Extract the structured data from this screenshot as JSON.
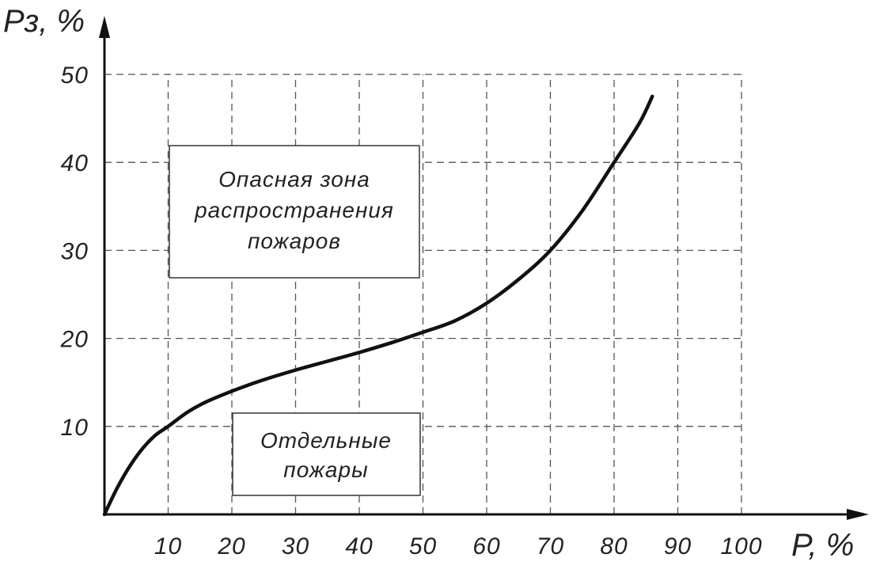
{
  "chart_data": {
    "type": "line",
    "title": "",
    "xlabel": "P, %",
    "ylabel": "Pз, %",
    "xlim": [
      0,
      100
    ],
    "ylim": [
      0,
      50
    ],
    "grid": true,
    "x_ticks": [
      "10",
      "20",
      "30",
      "40",
      "50",
      "60",
      "70",
      "80",
      "90",
      "100"
    ],
    "y_ticks": [
      "10",
      "20",
      "30",
      "40",
      "50"
    ],
    "series": [
      {
        "x": [
          0,
          2,
          4,
          6,
          8,
          10,
          13,
          16,
          20,
          25,
          30,
          35,
          40,
          45,
          50,
          55,
          60,
          65,
          70,
          75,
          80,
          84,
          86
        ],
        "y": [
          0,
          3,
          5.5,
          7.5,
          9,
          10,
          11.6,
          12.8,
          14,
          15.3,
          16.4,
          17.4,
          18.4,
          19.5,
          20.7,
          22,
          24,
          26.7,
          30,
          34.5,
          40,
          44.5,
          47.5
        ]
      }
    ],
    "annotations": [
      {
        "lines": [
          "Опасная зона",
          "распространения",
          "пожаров"
        ]
      },
      {
        "lines": [
          "Отдельные",
          "пожары"
        ]
      }
    ],
    "colors": {
      "grid": "#555555",
      "curve": "#111111",
      "axis": "#111111"
    }
  }
}
